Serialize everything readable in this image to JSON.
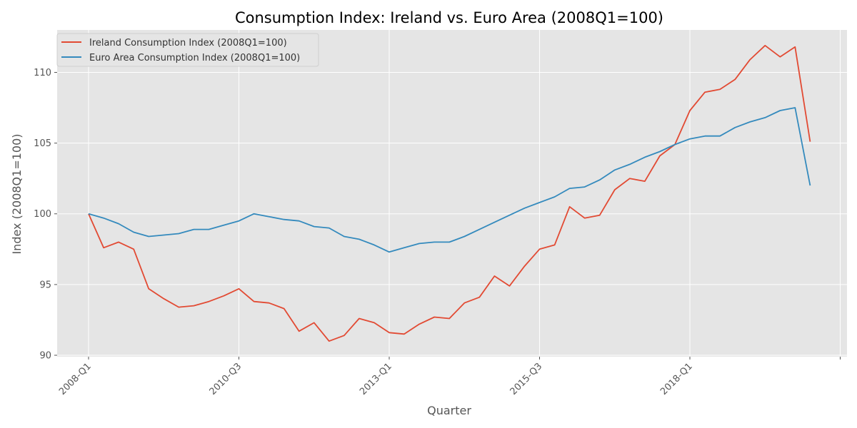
{
  "chart_data": {
    "type": "line",
    "title": "Consumption Index: Ireland vs. Euro Area (2008Q1=100)",
    "xlabel": "Quarter",
    "ylabel": "Index (2008Q1=100)",
    "x": [
      "2008-Q1",
      "2008-Q2",
      "2008-Q3",
      "2008-Q4",
      "2009-Q1",
      "2009-Q2",
      "2009-Q3",
      "2009-Q4",
      "2010-Q1",
      "2010-Q2",
      "2010-Q3",
      "2010-Q4",
      "2011-Q1",
      "2011-Q2",
      "2011-Q3",
      "2011-Q4",
      "2012-Q1",
      "2012-Q2",
      "2012-Q3",
      "2012-Q4",
      "2013-Q1",
      "2013-Q2",
      "2013-Q3",
      "2013-Q4",
      "2014-Q1",
      "2014-Q2",
      "2014-Q3",
      "2014-Q4",
      "2015-Q1",
      "2015-Q2",
      "2015-Q3",
      "2015-Q4",
      "2016-Q1",
      "2016-Q2",
      "2016-Q3",
      "2016-Q4",
      "2017-Q1",
      "2017-Q2",
      "2017-Q3",
      "2017-Q4",
      "2018-Q1",
      "2018-Q2",
      "2018-Q3",
      "2018-Q4",
      "2019-Q1",
      "2019-Q2",
      "2019-Q3",
      "2019-Q4",
      "2020-Q1",
      "2020-Q2"
    ],
    "xticks": [
      "2008-Q1",
      "2010-Q3",
      "2013-Q1",
      "2015-Q3",
      "2018-Q1"
    ],
    "extra_xtick_label": "",
    "yticks": [
      90,
      95,
      100,
      105,
      110
    ],
    "ylim": [
      89.9,
      113
    ],
    "grid": true,
    "legend_position": "top-left",
    "series": [
      {
        "name": "Ireland Consumption Index (2008Q1=100)",
        "color": "#E24A33",
        "values": [
          100.0,
          97.6,
          98.0,
          97.5,
          94.7,
          94.0,
          93.4,
          93.5,
          93.8,
          94.2,
          94.7,
          93.8,
          93.7,
          93.3,
          91.7,
          92.3,
          91.0,
          91.4,
          92.6,
          92.3,
          91.6,
          91.5,
          92.2,
          92.7,
          92.6,
          93.7,
          94.1,
          95.6,
          94.9,
          96.3,
          97.5,
          97.8,
          100.5,
          99.7,
          99.9,
          101.7,
          102.5,
          102.3,
          104.1,
          104.9,
          107.3,
          108.6,
          108.8,
          109.5,
          110.9,
          111.9,
          111.1,
          111.8,
          105.1,
          null
        ]
      },
      {
        "name": "Euro Area Consumption Index (2008Q1=100)",
        "color": "#348ABD",
        "values": [
          100.0,
          99.7,
          99.3,
          98.7,
          98.4,
          98.5,
          98.6,
          98.9,
          98.9,
          99.2,
          99.5,
          100.0,
          99.8,
          99.6,
          99.5,
          99.1,
          99.0,
          98.4,
          98.2,
          97.8,
          97.3,
          97.6,
          97.9,
          98.0,
          98.0,
          98.4,
          98.9,
          99.4,
          99.9,
          100.4,
          100.8,
          101.2,
          101.8,
          101.9,
          102.4,
          103.1,
          103.5,
          104.0,
          104.4,
          104.9,
          105.3,
          105.5,
          105.5,
          106.1,
          106.5,
          106.8,
          107.3,
          107.5,
          102.0,
          null
        ]
      }
    ]
  }
}
